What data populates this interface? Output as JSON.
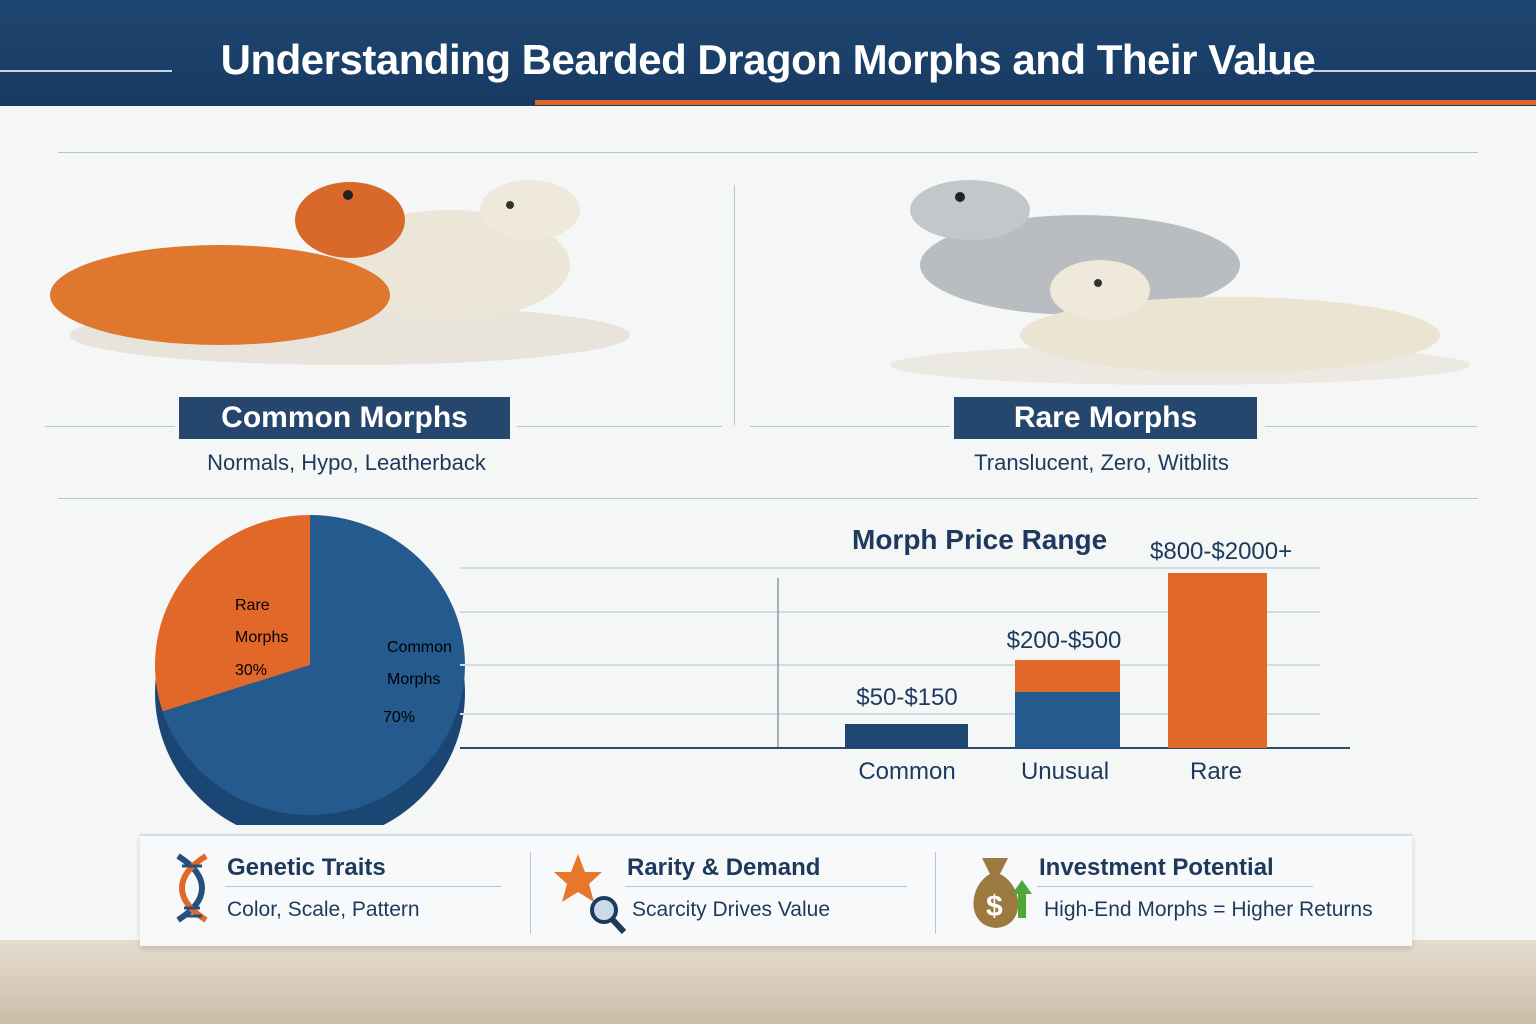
{
  "title": "Understanding Bearded Dragon Morphs and Their Value",
  "common": {
    "label": "Common Morphs",
    "examples": "Normals, Hypo, Leatherback"
  },
  "rare": {
    "label": "Rare Morphs",
    "examples": "Translucent, Zero, Witblits"
  },
  "colors": {
    "blue": "#255a8f",
    "dark_blue": "#1f4670",
    "orange": "#e2682a"
  },
  "chart_data": [
    {
      "type": "pie",
      "slices": [
        {
          "label": "Rare Morphs",
          "pct_label": "30%",
          "value": 30,
          "color": "#e2682a"
        },
        {
          "label": "Common Morphs",
          "pct_label": "70%",
          "value": 70,
          "color": "#255a8f"
        }
      ],
      "label_lines": {
        "rare": [
          "Rare",
          "Morphs",
          "30%"
        ],
        "common": [
          "Common",
          "Morphs",
          "70%"
        ]
      }
    },
    {
      "type": "bar",
      "title": "Morph Price Range",
      "categories": [
        "Common",
        "Unusual",
        "Rare"
      ],
      "data_labels": [
        "$50-$150",
        "$200-$500",
        "$800-$2000+"
      ],
      "ranges_usd": [
        [
          50,
          150
        ],
        [
          200,
          500
        ],
        [
          800,
          2000
        ]
      ]
    }
  ],
  "info": [
    {
      "icon": "dna-icon",
      "title": "Genetic Traits",
      "text": "Color, Scale, Pattern"
    },
    {
      "icon": "star-magnifier-icon",
      "title": "Rarity & Demand",
      "text": "Scarcity Drives Value"
    },
    {
      "icon": "money-bag-icon",
      "title": "Investment Potential",
      "text": "High-End Morphs = Higher Returns"
    }
  ]
}
